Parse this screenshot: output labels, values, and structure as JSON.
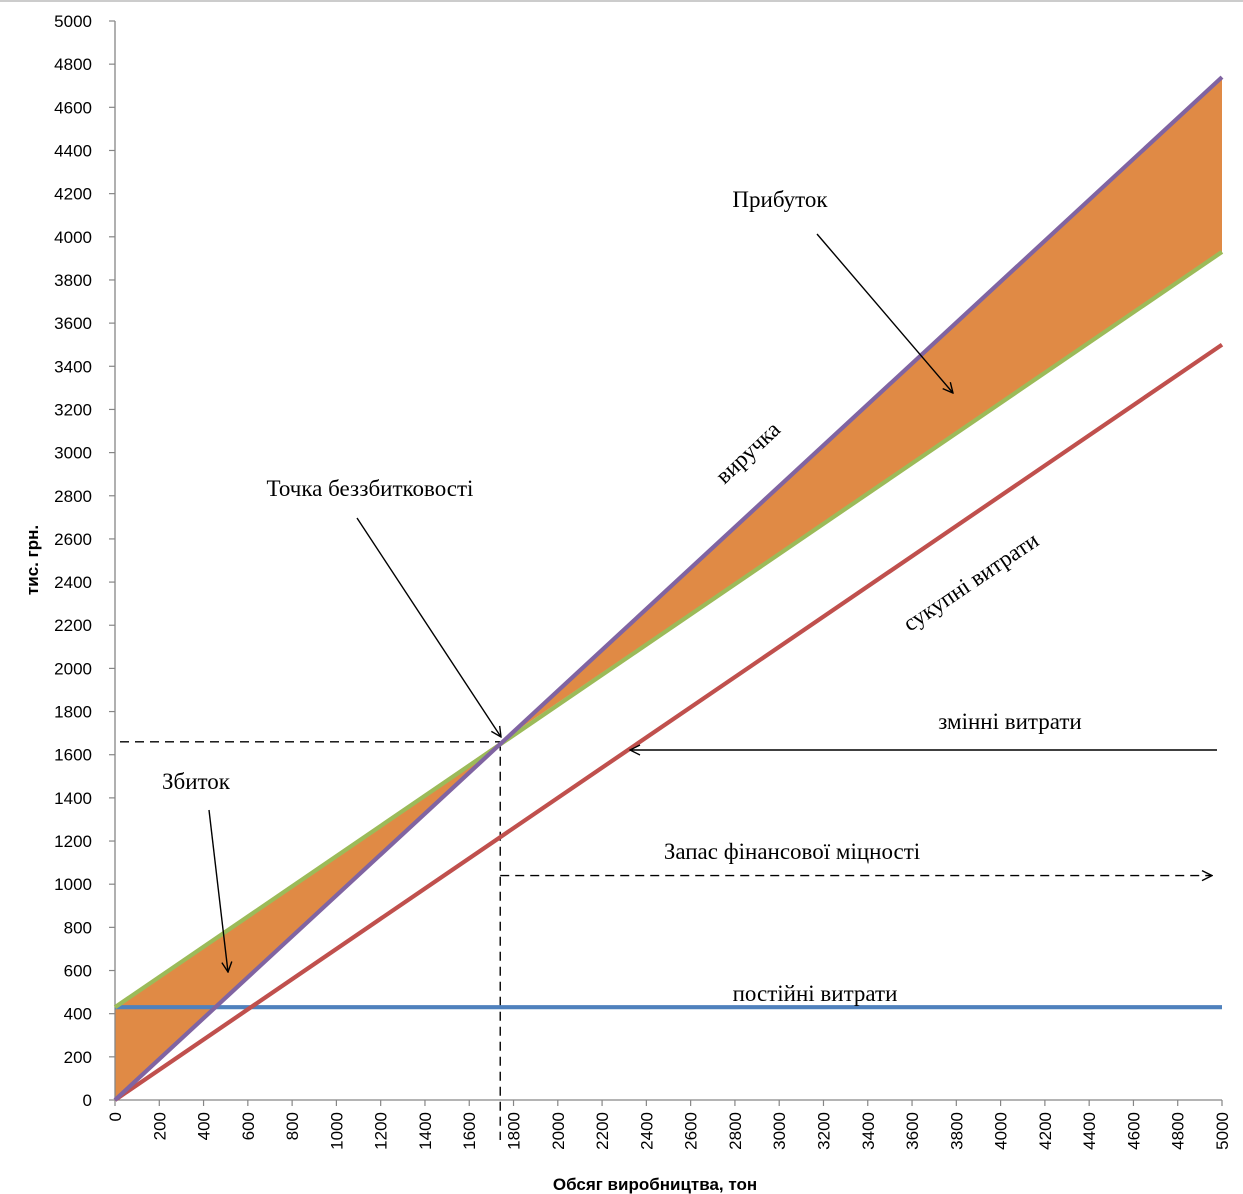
{
  "chart_data": {
    "type": "line",
    "title": "",
    "xlabel": "Обсяг виробництва,  тон",
    "ylabel": "тис. грн.",
    "xlim": [
      0,
      5000
    ],
    "ylim": [
      0,
      5000
    ],
    "x_ticks": [
      0,
      200,
      400,
      600,
      800,
      1000,
      1200,
      1400,
      1600,
      1800,
      2000,
      2200,
      2400,
      2600,
      2800,
      3000,
      3200,
      3400,
      3600,
      3800,
      4000,
      4200,
      4400,
      4600,
      4800,
      5000
    ],
    "y_ticks": [
      0,
      200,
      400,
      600,
      800,
      1000,
      1200,
      1400,
      1600,
      1800,
      2000,
      2200,
      2400,
      2600,
      2800,
      3000,
      3200,
      3400,
      3600,
      3800,
      4000,
      4200,
      4400,
      4600,
      4800,
      5000
    ],
    "grid": false,
    "series": [
      {
        "key": "fixed",
        "x": [
          0,
          5000
        ],
        "y": [
          430,
          430
        ],
        "color": "#4f81bd"
      },
      {
        "key": "variable",
        "x": [
          0,
          5000
        ],
        "y": [
          0,
          3500
        ],
        "color": "#c0504d"
      },
      {
        "key": "total",
        "x": [
          0,
          5000
        ],
        "y": [
          430,
          3930
        ],
        "color": "#9bbb59"
      },
      {
        "key": "revenue",
        "x": [
          0,
          5000
        ],
        "y": [
          0,
          4740
        ],
        "color": "#8064a2"
      }
    ],
    "fill_color": "#e08a45",
    "break_even": {
      "x": 1740,
      "y": 1660
    },
    "safety_margin_y": 1040,
    "annotations": {
      "profit": "Прибуток",
      "break_even": "Точка беззбитковості",
      "loss": "Збиток",
      "revenue": "виручка",
      "total_costs": "сукупні витрати",
      "variable_costs": "змінні витрати",
      "safety_margin": "Запас фінансової міцності",
      "fixed_costs": "постійні витрати"
    }
  }
}
